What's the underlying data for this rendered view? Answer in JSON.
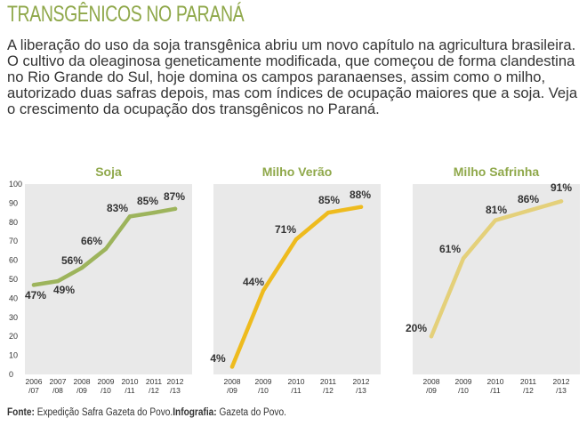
{
  "header": {
    "title": "TRANSGÊNICOS NO PARANÁ",
    "intro": "A liberação do uso da soja transgênica abriu um novo capítulo na agricultura brasileira. O cultivo da oleaginosa geneticamente modificada, que começou de forma clandestina no Rio Grande do Sul, hoje domina os campos paranaenses, assim como o milho, autorizado duas safras depois, mas com índices de ocupação maiores que a soja. Veja o crescimento da ocupação dos transgênicos no Paraná."
  },
  "colors": {
    "soja": "#9db45c",
    "milho_verao": "#eebb1e",
    "milho_safrinha": "#e4d07a",
    "panel_bg": "#e9e9e9",
    "title": "#8fa84a"
  },
  "chart_data": [
    {
      "type": "line",
      "title": "Soja",
      "categories": [
        "2006/07",
        "2007/08",
        "2008/09",
        "2009/10",
        "2010/11",
        "2011/12",
        "2012/13"
      ],
      "category_lines": [
        [
          "2006",
          "/07"
        ],
        [
          "2007",
          "/08"
        ],
        [
          "2008",
          "/09"
        ],
        [
          "2009",
          "/10"
        ],
        [
          "2010",
          "/11"
        ],
        [
          "2011",
          "/12"
        ],
        [
          "2012",
          "/13"
        ]
      ],
      "values": [
        47,
        49,
        56,
        66,
        83,
        85,
        87
      ],
      "labels": [
        "47%",
        "49%",
        "56%",
        "66%",
        "83%",
        "85%",
        "87%"
      ],
      "ylim": [
        0,
        100
      ],
      "yticks": [
        "0",
        "10",
        "20",
        "30",
        "40",
        "50",
        "60",
        "70",
        "80",
        "90",
        "100"
      ]
    },
    {
      "type": "line",
      "title": "Milho Verão",
      "categories": [
        "2008/09",
        "2009/10",
        "2010/11",
        "2011/12",
        "2012/13"
      ],
      "category_lines": [
        [
          "2008",
          "/09"
        ],
        [
          "2009",
          "/10"
        ],
        [
          "2010",
          "/11"
        ],
        [
          "2011",
          "/12"
        ],
        [
          "2012",
          "/13"
        ]
      ],
      "values": [
        4,
        44,
        71,
        85,
        88
      ],
      "labels": [
        "4%",
        "44%",
        "71%",
        "85%",
        "88%"
      ],
      "ylim": [
        0,
        100
      ]
    },
    {
      "type": "line",
      "title": "Milho Safrinha",
      "categories": [
        "2008/09",
        "2009/10",
        "2010/11",
        "2011/12",
        "2012/13"
      ],
      "category_lines": [
        [
          "2008",
          "/09"
        ],
        [
          "2009",
          "/10"
        ],
        [
          "2010",
          "/11"
        ],
        [
          "2011",
          "/12"
        ],
        [
          "2012",
          "/13"
        ]
      ],
      "values": [
        20,
        61,
        81,
        86,
        91
      ],
      "labels": [
        "20%",
        "61%",
        "81%",
        "86%",
        "91%"
      ],
      "ylim": [
        0,
        100
      ]
    }
  ],
  "footer": {
    "source_label": "Fonte:",
    "source_text": "Expedição Safra Gazeta do Povo.",
    "infographic_label": "Infografia:",
    "infographic_text": "Gazeta do Povo."
  }
}
